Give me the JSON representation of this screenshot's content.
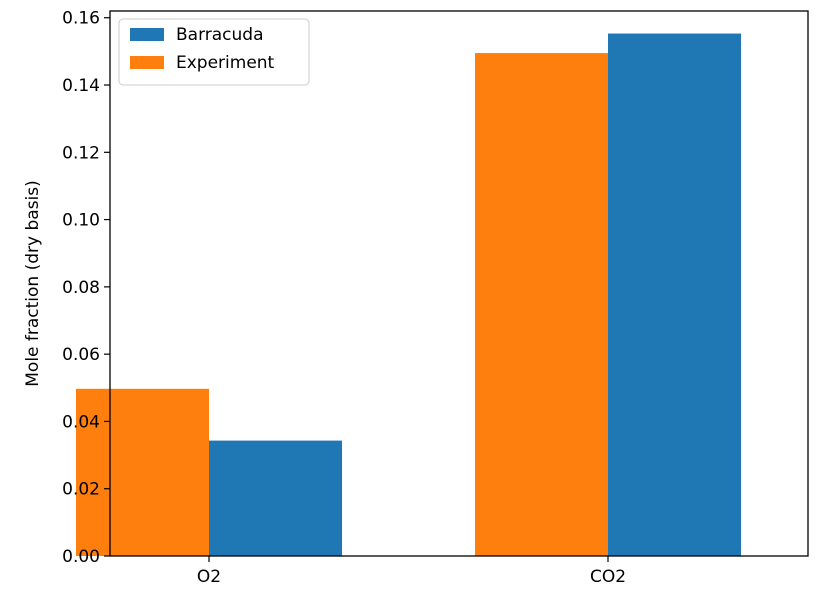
{
  "chart_data": {
    "type": "bar",
    "categories": [
      "O2",
      "CO2"
    ],
    "series": [
      {
        "name": "Experiment",
        "values": [
          0.0497,
          0.1495
        ],
        "color": "#ff7f0e"
      },
      {
        "name": "Barracuda",
        "values": [
          0.0343,
          0.1553
        ],
        "color": "#1f77b4"
      }
    ],
    "legend_order": [
      "Barracuda",
      "Experiment"
    ],
    "legend_position": "top-left",
    "xlabel": "",
    "ylabel": "Mole fraction (dry basis)",
    "ylim": [
      0,
      0.162
    ],
    "yticks": [
      "0.00",
      "0.02",
      "0.04",
      "0.06",
      "0.08",
      "0.10",
      "0.12",
      "0.14",
      "0.16"
    ],
    "grid": false
  }
}
